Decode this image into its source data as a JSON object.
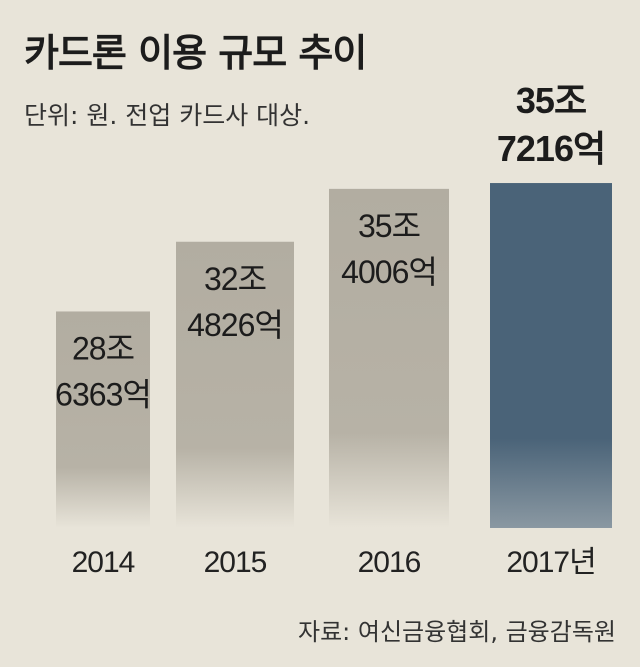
{
  "chart_data": {
    "type": "bar",
    "title": "카드론 이용 규모 추이",
    "subtitle": "단위: 원. 전업 카드사 대상.",
    "source": "자료: 여신금융협회, 금융감독원",
    "categories": [
      "2014",
      "2015",
      "2016",
      "2017년"
    ],
    "values": [
      286363,
      324826,
      354006,
      357216
    ],
    "value_labels": [
      [
        "28조",
        "6363억"
      ],
      [
        "32조",
        "4826억"
      ],
      [
        "35조",
        "4006억"
      ],
      [
        "35조",
        "7216억"
      ]
    ],
    "highlight_index": 3,
    "colors": {
      "background": "#e8e4d9",
      "bar": "#b5b0a4",
      "highlight": "#4a6378",
      "text": "#222222"
    },
    "ylim": [
      0,
      400000
    ],
    "grid": false
  }
}
